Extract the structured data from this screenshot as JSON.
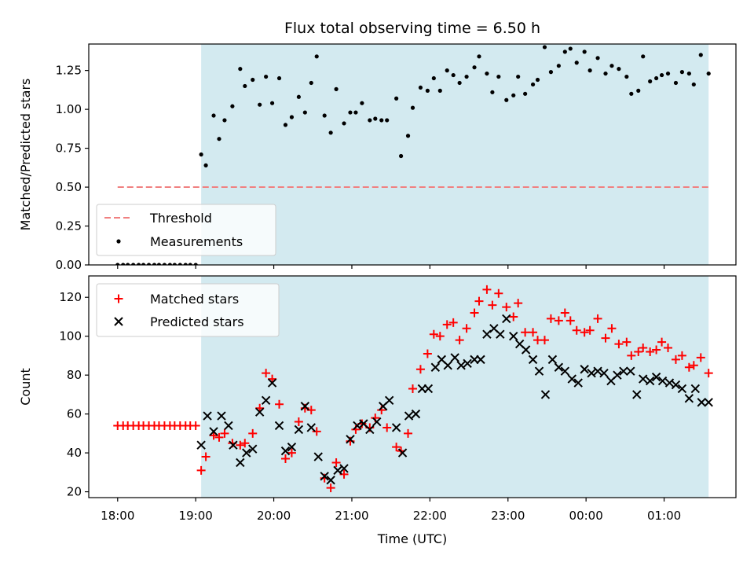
{
  "chart_data": {
    "title": "Flux total observing time = 6.50 h",
    "xlabel": "Time (UTC)",
    "x_ticks": [
      "18:00",
      "19:00",
      "20:00",
      "21:00",
      "22:00",
      "23:00",
      "00:00",
      "01:00"
    ],
    "x_range_hours": [
      17.63,
      25.92
    ],
    "shaded_interval_hours": [
      19.07,
      25.57
    ],
    "shade_color": "#d3eaf0",
    "panels": [
      {
        "type": "scatter",
        "ylabel": "Matched/Predicted stars",
        "ylim": [
          0,
          1.42
        ],
        "y_ticks": [
          "0.00",
          "0.25",
          "0.50",
          "0.75",
          "1.00",
          "1.25"
        ],
        "y_tick_values": [
          0,
          0.25,
          0.5,
          0.75,
          1.0,
          1.25
        ],
        "threshold": {
          "label": "Threshold",
          "value": 0.5,
          "x": [
            18.0,
            25.57
          ],
          "color": "#f08080"
        },
        "legend": {
          "position": "lower-left",
          "entries": [
            "Threshold",
            "Measurements"
          ]
        },
        "series": [
          {
            "name": "Measurements",
            "color": "#000000",
            "marker": "dot",
            "x": [
              18.0,
              18.07,
              18.13,
              18.2,
              18.27,
              18.33,
              18.4,
              18.47,
              18.53,
              18.6,
              18.67,
              18.73,
              18.8,
              18.87,
              18.93,
              19.0,
              19.07,
              19.13,
              19.23,
              19.3,
              19.37,
              19.47,
              19.57,
              19.63,
              19.73,
              19.82,
              19.9,
              19.98,
              20.07,
              20.15,
              20.23,
              20.32,
              20.4,
              20.48,
              20.55,
              20.65,
              20.73,
              20.8,
              20.9,
              20.98,
              21.05,
              21.13,
              21.23,
              21.3,
              21.38,
              21.45,
              21.57,
              21.63,
              21.72,
              21.78,
              21.88,
              21.97,
              22.05,
              22.13,
              22.22,
              22.3,
              22.38,
              22.47,
              22.57,
              22.63,
              22.73,
              22.8,
              22.88,
              22.98,
              23.07,
              23.13,
              23.22,
              23.32,
              23.38,
              23.47,
              23.55,
              23.65,
              23.73,
              23.8,
              23.88,
              23.98,
              24.05,
              24.15,
              24.25,
              24.33,
              24.42,
              24.52,
              24.58,
              24.67,
              24.73,
              24.82,
              24.9,
              24.97,
              25.05,
              25.15,
              25.23,
              25.32,
              25.38,
              25.47,
              25.57
            ],
            "y": [
              0,
              0,
              0,
              0,
              0,
              0,
              0,
              0,
              0,
              0,
              0,
              0,
              0,
              0,
              0,
              0,
              0.71,
              0.64,
              0.96,
              0.81,
              0.93,
              1.02,
              1.26,
              1.15,
              1.19,
              1.03,
              1.21,
              1.04,
              1.2,
              0.9,
              0.95,
              1.08,
              0.98,
              1.17,
              1.34,
              0.96,
              0.85,
              1.13,
              0.91,
              0.98,
              0.98,
              1.04,
              0.93,
              0.94,
              0.93,
              0.93,
              1.07,
              0.7,
              0.83,
              1.01,
              1.14,
              1.12,
              1.2,
              1.12,
              1.25,
              1.22,
              1.17,
              1.21,
              1.27,
              1.34,
              1.23,
              1.11,
              1.21,
              1.06,
              1.09,
              1.21,
              1.1,
              1.16,
              1.19,
              1.4,
              1.24,
              1.28,
              1.37,
              1.39,
              1.3,
              1.37,
              1.25,
              1.33,
              1.23,
              1.28,
              1.26,
              1.21,
              1.1,
              1.12,
              1.34,
              1.18,
              1.2,
              1.22,
              1.23,
              1.17,
              1.24,
              1.23,
              1.16,
              1.35,
              1.23
            ]
          }
        ]
      },
      {
        "type": "scatter",
        "ylabel": "Count",
        "ylim": [
          17,
          131
        ],
        "y_ticks": [
          "20",
          "40",
          "60",
          "80",
          "100",
          "120"
        ],
        "y_tick_values": [
          20,
          40,
          60,
          80,
          100,
          120
        ],
        "legend": {
          "position": "upper-left",
          "entries": [
            "Matched stars",
            "Predicted stars"
          ]
        },
        "series": [
          {
            "name": "Matched stars",
            "color": "#ff0000",
            "marker": "plus",
            "x": [
              18.0,
              18.07,
              18.13,
              18.2,
              18.27,
              18.33,
              18.4,
              18.47,
              18.53,
              18.6,
              18.67,
              18.73,
              18.8,
              18.87,
              18.93,
              19.0,
              19.07,
              19.13,
              19.23,
              19.3,
              19.37,
              19.47,
              19.57,
              19.63,
              19.73,
              19.82,
              19.9,
              19.98,
              20.07,
              20.15,
              20.23,
              20.32,
              20.4,
              20.48,
              20.55,
              20.65,
              20.73,
              20.8,
              20.9,
              20.98,
              21.05,
              21.13,
              21.23,
              21.3,
              21.38,
              21.45,
              21.57,
              21.63,
              21.72,
              21.78,
              21.88,
              21.97,
              22.05,
              22.13,
              22.22,
              22.3,
              22.38,
              22.47,
              22.57,
              22.63,
              22.73,
              22.8,
              22.88,
              22.98,
              23.07,
              23.13,
              23.22,
              23.32,
              23.38,
              23.47,
              23.55,
              23.65,
              23.73,
              23.8,
              23.88,
              23.98,
              24.05,
              24.15,
              24.25,
              24.33,
              24.42,
              24.52,
              24.58,
              24.67,
              24.73,
              24.82,
              24.9,
              24.97,
              25.05,
              25.15,
              25.23,
              25.32,
              25.38,
              25.47,
              25.57
            ],
            "y": [
              54,
              54,
              54,
              54,
              54,
              54,
              54,
              54,
              54,
              54,
              54,
              54,
              54,
              54,
              54,
              54,
              31,
              38,
              49,
              48,
              50,
              45,
              44,
              45,
              50,
              63,
              81,
              78,
              65,
              37,
              40,
              56,
              63,
              62,
              51,
              27,
              22,
              35,
              29,
              46,
              52,
              55,
              53,
              58,
              62,
              53,
              43,
              41,
              50,
              73,
              83,
              91,
              101,
              100,
              106,
              107,
              98,
              104,
              112,
              118,
              124,
              116,
              122,
              115,
              110,
              117,
              102,
              102,
              98,
              98,
              109,
              108,
              112,
              108,
              103,
              102,
              103,
              109,
              99,
              104,
              96,
              97,
              90,
              92,
              94,
              92,
              93,
              97,
              94,
              88,
              90,
              84,
              85,
              89,
              81
            ]
          },
          {
            "name": "Predicted stars",
            "color": "#000000",
            "marker": "x",
            "x": [
              19.07,
              19.15,
              19.23,
              19.33,
              19.42,
              19.48,
              19.57,
              19.65,
              19.73,
              19.82,
              19.9,
              19.98,
              20.07,
              20.15,
              20.23,
              20.32,
              20.4,
              20.48,
              20.57,
              20.65,
              20.73,
              20.82,
              20.9,
              20.98,
              21.07,
              21.15,
              21.23,
              21.32,
              21.4,
              21.48,
              21.57,
              21.65,
              21.73,
              21.82,
              21.9,
              21.98,
              22.07,
              22.15,
              22.23,
              22.32,
              22.4,
              22.48,
              22.57,
              22.65,
              22.73,
              22.82,
              22.9,
              22.98,
              23.07,
              23.15,
              23.23,
              23.32,
              23.4,
              23.48,
              23.57,
              23.65,
              23.73,
              23.82,
              23.9,
              23.98,
              24.07,
              24.15,
              24.23,
              24.32,
              24.4,
              24.48,
              24.57,
              24.65,
              24.73,
              24.82,
              24.9,
              24.98,
              25.07,
              25.15,
              25.23,
              25.32,
              25.4,
              25.48,
              25.57
            ],
            "y": [
              44,
              59,
              51,
              59,
              54,
              44,
              35,
              40,
              42,
              61,
              67,
              76,
              54,
              41,
              43,
              52,
              64,
              53,
              38,
              28,
              26,
              31,
              32,
              47,
              54,
              55,
              52,
              56,
              64,
              67,
              53,
              40,
              59,
              60,
              73,
              73,
              84,
              88,
              85,
              89,
              85,
              86,
              88,
              88,
              101,
              104,
              101,
              109,
              100,
              96,
              93,
              88,
              82,
              70,
              88,
              84,
              82,
              78,
              76,
              83,
              81,
              82,
              81,
              77,
              80,
              82,
              82,
              70,
              78,
              77,
              79,
              77,
              76,
              75,
              73,
              68,
              73,
              66,
              66
            ]
          }
        ]
      }
    ]
  }
}
